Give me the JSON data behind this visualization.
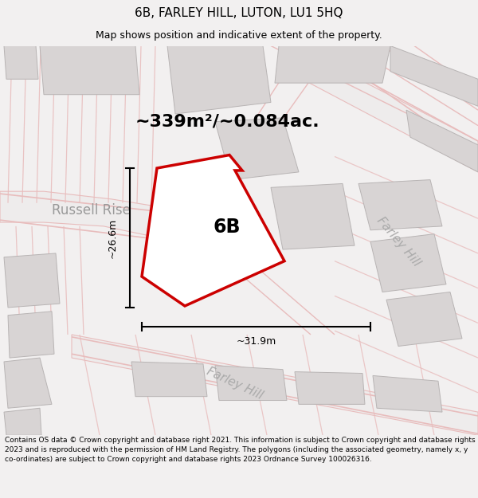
{
  "title": "6B, FARLEY HILL, LUTON, LU1 5HQ",
  "subtitle": "Map shows position and indicative extent of the property.",
  "area_label": "~339m²/~0.084ac.",
  "property_label": "6B",
  "dim_width": "~31.9m",
  "dim_height": "~26.6m",
  "street_label_russell": "Russell Rise",
  "street_label_farley_right": "Farley Hill",
  "street_label_farley_bottom": "Farley Hill",
  "footer": "Contains OS data © Crown copyright and database right 2021. This information is subject to Crown copyright and database rights 2023 and is reproduced with the permission of HM Land Registry. The polygons (including the associated geometry, namely x, y co-ordinates) are subject to Crown copyright and database rights 2023 Ordnance Survey 100026316.",
  "bg_color": "#f2f0f0",
  "map_bg": "#f2f0f0",
  "property_fill": "#ffffff",
  "property_edge": "#cc0000",
  "road_color": "#e8bcbc",
  "road_fill": "#f5f0f0",
  "building_color": "#d8d4d4",
  "building_edge": "#b8b4b4",
  "title_fontsize": 11,
  "subtitle_fontsize": 9,
  "area_fontsize": 16,
  "label_fontsize": 17,
  "street_fontsize": 11,
  "footer_fontsize": 6.5,
  "dim_fontsize": 9,
  "russell_fontsize": 12,
  "farley_fontsize": 11
}
